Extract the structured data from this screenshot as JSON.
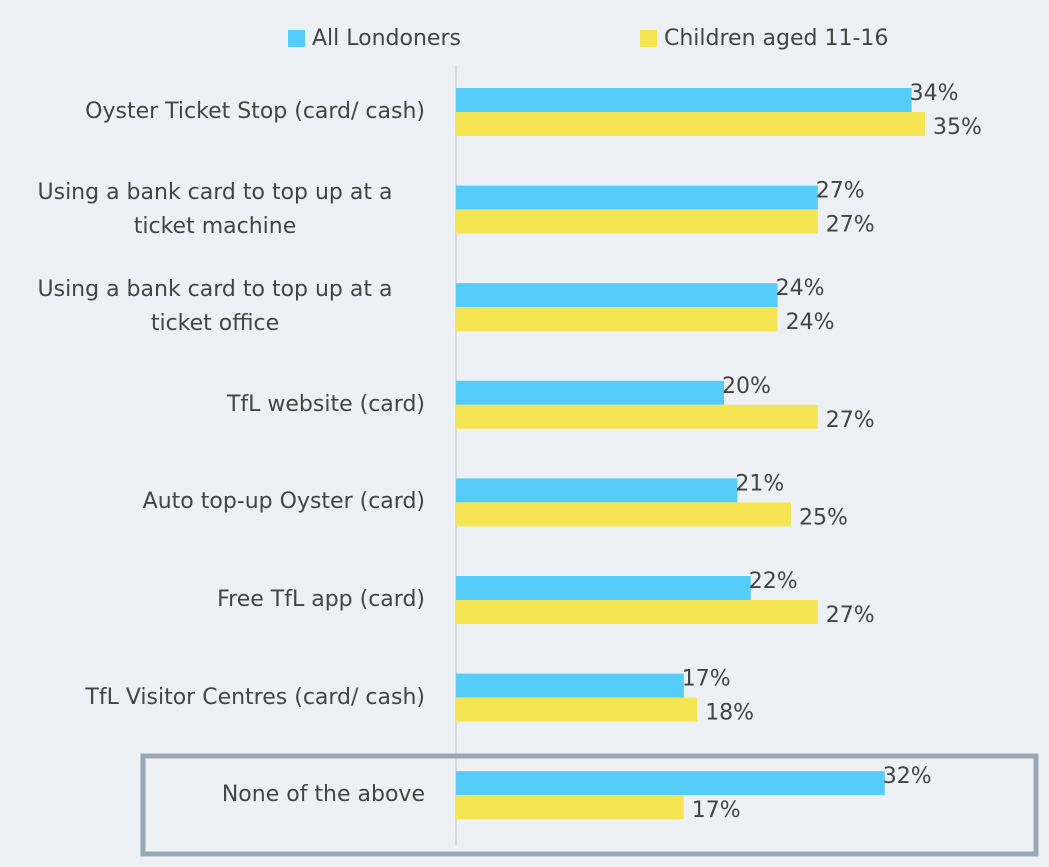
{
  "chart_data": {
    "type": "hbar",
    "categories": [
      "Oyster Ticket Stop (card/ cash)",
      "Using a bank card to top up at a ticket machine",
      "Using a bank card to top up at a ticket office",
      "TfL website (card)",
      "Auto top-up Oyster (card)",
      "Free TfL app (card)",
      "TfL Visitor Centres (card/ cash)",
      "None of the above"
    ],
    "series": [
      {
        "name": "All Londoners",
        "color": "#55ccfa",
        "values": [
          34,
          27,
          24,
          20,
          21,
          22,
          17,
          32
        ],
        "value_labels": [
          "34%",
          "27%",
          "24%",
          "20%",
          "21%",
          "22%",
          "17%",
          "32%"
        ]
      },
      {
        "name": "Children aged 11-16",
        "color": "#f5e552",
        "values": [
          35,
          27,
          24,
          27,
          25,
          27,
          18,
          17
        ],
        "value_labels": [
          "35%",
          "27%",
          "24%",
          "27%",
          "25%",
          "27%",
          "18%",
          "17%"
        ]
      }
    ]
  }
}
